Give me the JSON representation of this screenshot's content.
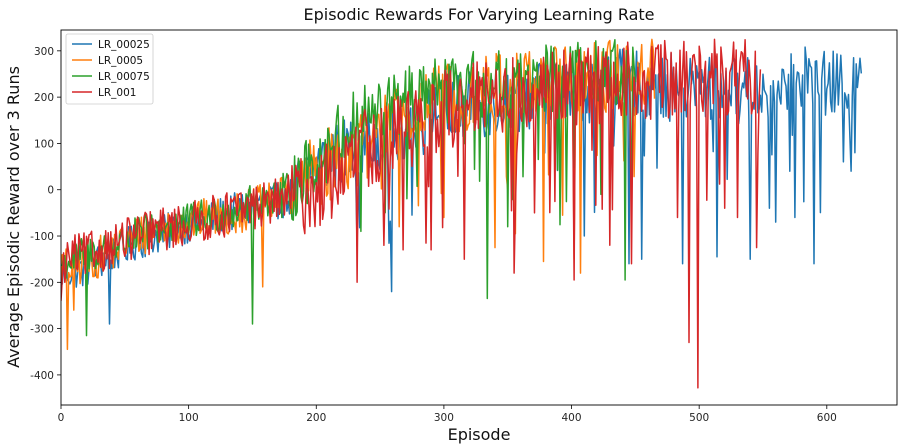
{
  "chart_data": {
    "type": "line",
    "title": "Episodic Rewards For Varying Learning Rate",
    "xlabel": "Episode",
    "ylabel": "Average Episodic Reward over 3 Runs",
    "xlim": [
      0,
      655
    ],
    "ylim": [
      -465,
      345
    ],
    "xticks": [
      0,
      100,
      200,
      300,
      400,
      500,
      600
    ],
    "yticks": [
      -400,
      -300,
      -200,
      -100,
      0,
      100,
      200,
      300
    ],
    "grid": false,
    "legend_position": "top-left",
    "series": [
      {
        "name": "LR_00025",
        "color": "#1f77b4",
        "n_episodes": 627,
        "anchors": [
          [
            0,
            -180
          ],
          [
            20,
            -170
          ],
          [
            40,
            -140
          ],
          [
            60,
            -110
          ],
          [
            80,
            -95
          ],
          [
            100,
            -75
          ],
          [
            120,
            -60
          ],
          [
            140,
            -45
          ],
          [
            160,
            -30
          ],
          [
            180,
            -15
          ],
          [
            200,
            50
          ],
          [
            220,
            80
          ],
          [
            240,
            100
          ],
          [
            260,
            120
          ],
          [
            280,
            150
          ],
          [
            300,
            170
          ],
          [
            320,
            180
          ],
          [
            340,
            190
          ],
          [
            360,
            200
          ],
          [
            380,
            210
          ],
          [
            400,
            215
          ],
          [
            420,
            220
          ],
          [
            440,
            230
          ],
          [
            460,
            230
          ],
          [
            480,
            220
          ],
          [
            500,
            220
          ],
          [
            520,
            215
          ],
          [
            540,
            215
          ],
          [
            560,
            220
          ],
          [
            580,
            225
          ],
          [
            600,
            225
          ],
          [
            620,
            230
          ],
          [
            627,
            240
          ]
        ],
        "noise": 55,
        "spikes": [
          [
            38,
            -290
          ],
          [
            90,
            -80
          ],
          [
            259,
            -220
          ],
          [
            410,
            -100
          ],
          [
            445,
            -160
          ],
          [
            455,
            -150
          ],
          [
            487,
            -160
          ],
          [
            514,
            -145
          ],
          [
            540,
            -150
          ],
          [
            560,
            -70
          ],
          [
            575,
            -60
          ],
          [
            590,
            -160
          ],
          [
            613,
            60
          ],
          [
            618,
            120
          ],
          [
            621,
            -15
          ],
          [
            583,
            308
          ],
          [
            621,
            285
          ],
          [
            625,
            250
          ]
        ]
      },
      {
        "name": "LR_0005",
        "color": "#ff7f0e",
        "n_episodes": 465,
        "anchors": [
          [
            0,
            -170
          ],
          [
            20,
            -160
          ],
          [
            40,
            -130
          ],
          [
            60,
            -100
          ],
          [
            80,
            -80
          ],
          [
            100,
            -70
          ],
          [
            120,
            -60
          ],
          [
            140,
            -50
          ],
          [
            160,
            -30
          ],
          [
            180,
            -10
          ],
          [
            200,
            40
          ],
          [
            220,
            70
          ],
          [
            240,
            100
          ],
          [
            260,
            140
          ],
          [
            280,
            170
          ],
          [
            300,
            200
          ],
          [
            320,
            210
          ],
          [
            340,
            220
          ],
          [
            360,
            230
          ],
          [
            380,
            235
          ],
          [
            400,
            240
          ],
          [
            420,
            245
          ],
          [
            440,
            250
          ],
          [
            460,
            250
          ],
          [
            465,
            250
          ]
        ],
        "noise": 60,
        "spikes": [
          [
            5,
            -345
          ],
          [
            10,
            -260
          ],
          [
            158,
            -210
          ],
          [
            340,
            -125
          ],
          [
            356,
            -95
          ],
          [
            378,
            -155
          ],
          [
            393,
            -55
          ],
          [
            402,
            -150
          ],
          [
            404,
            -205
          ],
          [
            407,
            -180
          ],
          [
            404,
            300
          ],
          [
            448,
            300
          ],
          [
            462,
            300
          ],
          [
            265,
            -80
          ],
          [
            300,
            -60
          ]
        ]
      },
      {
        "name": "LR_00075",
        "color": "#2ca02c",
        "n_episodes": 450,
        "anchors": [
          [
            0,
            -160
          ],
          [
            20,
            -140
          ],
          [
            40,
            -120
          ],
          [
            60,
            -100
          ],
          [
            80,
            -80
          ],
          [
            100,
            -70
          ],
          [
            120,
            -55
          ],
          [
            140,
            -40
          ],
          [
            160,
            -20
          ],
          [
            180,
            0
          ],
          [
            200,
            60
          ],
          [
            220,
            120
          ],
          [
            240,
            160
          ],
          [
            260,
            180
          ],
          [
            280,
            200
          ],
          [
            300,
            215
          ],
          [
            320,
            225
          ],
          [
            340,
            230
          ],
          [
            360,
            235
          ],
          [
            380,
            240
          ],
          [
            400,
            245
          ],
          [
            420,
            250
          ],
          [
            440,
            250
          ],
          [
            450,
            250
          ]
        ],
        "noise": 55,
        "spikes": [
          [
            20,
            -315
          ],
          [
            150,
            -290
          ],
          [
            173,
            -60
          ],
          [
            235,
            -90
          ],
          [
            290,
            -70
          ],
          [
            334,
            -235
          ],
          [
            350,
            -80
          ],
          [
            423,
            -10
          ],
          [
            442,
            -195
          ],
          [
            447,
            -80
          ],
          [
            443,
            300
          ],
          [
            210,
            120
          ]
        ]
      },
      {
        "name": "LR_001",
        "color": "#d62728",
        "n_episodes": 548,
        "anchors": [
          [
            0,
            -150
          ],
          [
            20,
            -140
          ],
          [
            40,
            -120
          ],
          [
            60,
            -100
          ],
          [
            80,
            -85
          ],
          [
            100,
            -75
          ],
          [
            120,
            -60
          ],
          [
            140,
            -45
          ],
          [
            160,
            -30
          ],
          [
            180,
            -15
          ],
          [
            200,
            -5
          ],
          [
            220,
            40
          ],
          [
            240,
            90
          ],
          [
            260,
            120
          ],
          [
            280,
            150
          ],
          [
            300,
            170
          ],
          [
            320,
            190
          ],
          [
            340,
            200
          ],
          [
            360,
            210
          ],
          [
            380,
            215
          ],
          [
            400,
            220
          ],
          [
            420,
            225
          ],
          [
            440,
            230
          ],
          [
            460,
            235
          ],
          [
            480,
            240
          ],
          [
            500,
            245
          ],
          [
            520,
            245
          ],
          [
            540,
            240
          ],
          [
            548,
            245
          ]
        ],
        "noise": 65,
        "spikes": [
          [
            0,
            -240
          ],
          [
            3,
            -200
          ],
          [
            232,
            -200
          ],
          [
            253,
            -120
          ],
          [
            268,
            -130
          ],
          [
            290,
            -130
          ],
          [
            316,
            -150
          ],
          [
            355,
            -180
          ],
          [
            371,
            -50
          ],
          [
            402,
            -195
          ],
          [
            430,
            -120
          ],
          [
            447,
            -160
          ],
          [
            483,
            -60
          ],
          [
            492,
            -330
          ],
          [
            499,
            -428
          ],
          [
            520,
            -40
          ],
          [
            530,
            -60
          ],
          [
            545,
            -125
          ],
          [
            500,
            310
          ],
          [
            548,
            260
          ]
        ]
      }
    ]
  }
}
